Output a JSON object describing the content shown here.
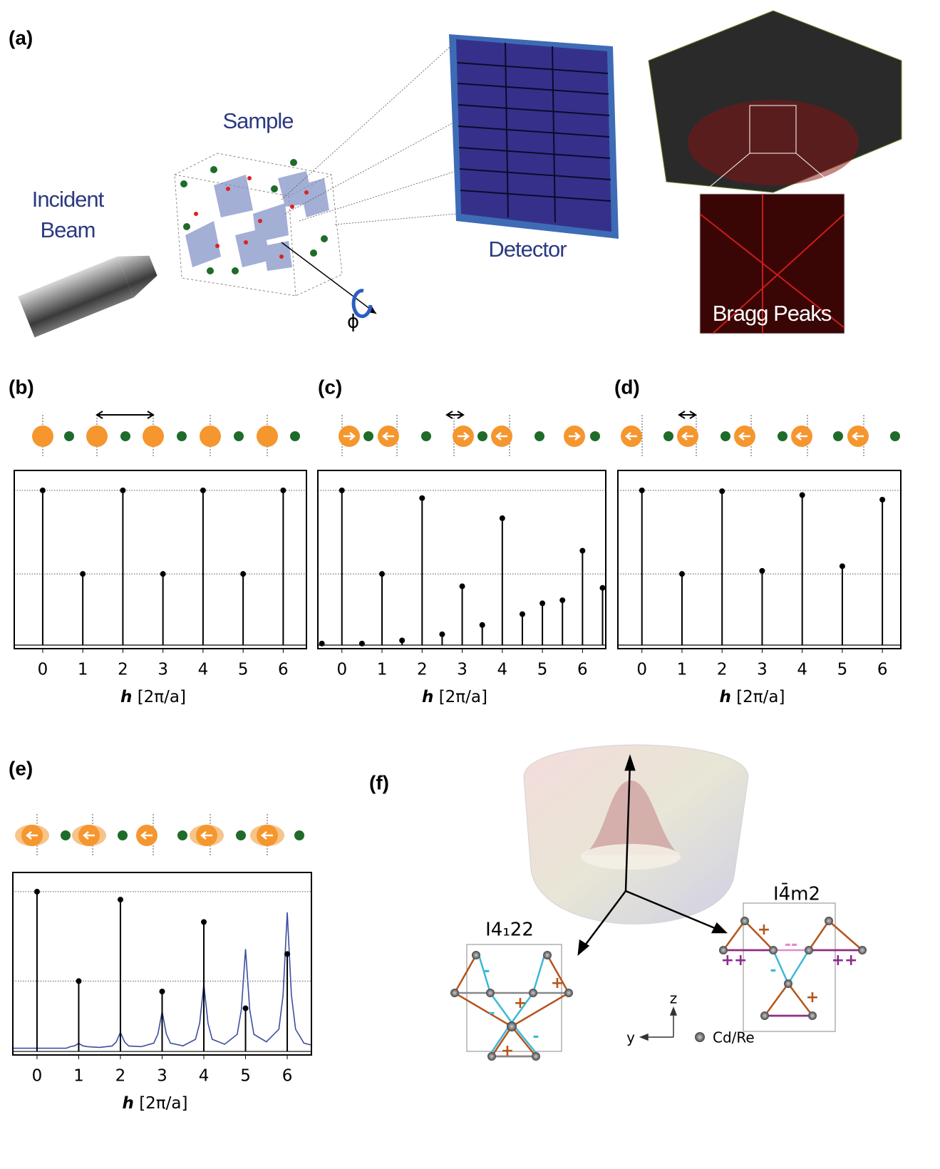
{
  "panel_labels": [
    "(a)",
    "(b)",
    "(c)",
    "(d)",
    "(e)",
    "(f)"
  ],
  "setup": {
    "beam_label": [
      "Incident",
      "Beam"
    ],
    "sample_label": "Sample",
    "detector_label": "Detector",
    "inset_label": "Bragg Peaks",
    "rotation_label": "ϕ"
  },
  "chart_data": [
    {
      "type": "stem",
      "x": [
        0,
        1,
        2,
        3,
        4,
        5,
        6
      ],
      "values": [
        1,
        0.46,
        1,
        0.46,
        1,
        0.46,
        1
      ],
      "xlim": [
        -0.71,
        6.58
      ],
      "ylim": [
        -0.023,
        1.129
      ],
      "xticks": [
        0,
        1,
        2,
        3,
        4,
        5,
        6
      ],
      "ref_lines": [
        1,
        0.46
      ],
      "xlabel": {
        "symbol": "h",
        "unit": "[2π/a]"
      },
      "color": "#000000"
    },
    {
      "type": "stem",
      "x": [
        -0.5,
        0,
        0.5,
        1,
        1.5,
        2,
        2.5,
        3,
        3.5,
        4,
        4.5,
        5,
        5.5,
        6,
        6.5
      ],
      "values": [
        0.01,
        1,
        0.01,
        0.46,
        0.03,
        0.95,
        0.07,
        0.38,
        0.13,
        0.82,
        0.2,
        0.27,
        0.29,
        0.61,
        0.37
      ],
      "xlim": [
        -0.6,
        6.58
      ],
      "ylim": [
        -0.023,
        1.129
      ],
      "xticks": [
        0,
        1,
        2,
        3,
        4,
        5,
        6
      ],
      "ref_lines": [
        1,
        0.46
      ],
      "xlabel": {
        "symbol": "h",
        "unit": "[2π/a]"
      },
      "color": "#000000"
    },
    {
      "type": "stem",
      "x": [
        0,
        1,
        2,
        3,
        4,
        5,
        6
      ],
      "values": [
        1,
        0.46,
        0.995,
        0.48,
        0.97,
        0.51,
        0.94
      ],
      "xlim": [
        -0.6,
        6.46
      ],
      "ylim": [
        -0.023,
        1.129
      ],
      "xticks": [
        0,
        1,
        2,
        3,
        4,
        5,
        6
      ],
      "ref_lines": [
        1,
        0.46
      ],
      "xlabel": {
        "symbol": "h",
        "unit": "[2π/a]"
      },
      "color": "#000000"
    },
    {
      "type": "stem",
      "x": [
        0,
        1,
        2,
        3,
        4,
        5,
        6
      ],
      "values": [
        1,
        0.44,
        0.95,
        0.375,
        0.81,
        0.27,
        0.61
      ],
      "xlim": [
        -0.58,
        6.58
      ],
      "ylim": [
        -0.022,
        1.12
      ],
      "xticks": [
        0,
        1,
        2,
        3,
        4,
        5,
        6
      ],
      "ref_lines": [
        1,
        0.44
      ],
      "xlabel": {
        "symbol": "h",
        "unit": "[2π/a]"
      },
      "color": "#000000",
      "curve": {
        "color": "#3b4ea0",
        "x": [
          -0.6,
          -0.3,
          0,
          0.3,
          0.5,
          0.7,
          0.8,
          0.9,
          1,
          1.1,
          1.2,
          1.5,
          1.8,
          1.9,
          2,
          2.1,
          2.2,
          2.5,
          2.8,
          2.9,
          3,
          3.1,
          3.2,
          3.5,
          3.8,
          3.9,
          4,
          4.1,
          4.2,
          4.5,
          4.8,
          4.9,
          5,
          5.1,
          5.2,
          5.5,
          5.8,
          5.9,
          6,
          6.1,
          6.2,
          6.4,
          6.58
        ],
        "values": [
          0.02,
          0.02,
          0.02,
          0.02,
          0.02,
          0.02,
          0.03,
          0.035,
          0.05,
          0.035,
          0.03,
          0.025,
          0.034,
          0.059,
          0.12,
          0.059,
          0.034,
          0.03,
          0.052,
          0.11,
          0.25,
          0.11,
          0.052,
          0.035,
          0.076,
          0.176,
          0.42,
          0.176,
          0.076,
          0.045,
          0.107,
          0.262,
          0.64,
          0.262,
          0.107,
          0.06,
          0.139,
          0.352,
          0.87,
          0.352,
          0.139,
          0.052,
          0.04
        ]
      }
    }
  ],
  "landscape": {
    "phase_left": "I4₁22",
    "phase_right": "I4̄m2",
    "axis_z": "z",
    "axis_y": "y",
    "atom_legend": "Cd/Re",
    "signs": [
      "-",
      "+",
      "+",
      "-",
      "-",
      "+",
      "+",
      "--",
      "++",
      "++",
      "-",
      "+"
    ]
  }
}
